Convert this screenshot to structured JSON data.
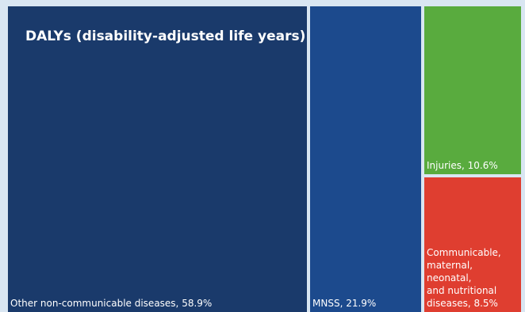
{
  "chart_data": {
    "type": "treemap",
    "title": "DALYs (disability-adjusted life years)",
    "unit": "%",
    "items": [
      {
        "name": "Other non-communicable diseases",
        "value": 58.9,
        "label": "Other non-communicable diseases, 58.9%",
        "color": "#1a3a6b"
      },
      {
        "name": "MNSS",
        "value": 21.9,
        "label": "MNSS, 21.9%",
        "color": "#1c4a8d"
      },
      {
        "name": "Injuries",
        "value": 10.6,
        "label": "Injuries, 10.6%",
        "color": "#59ab3e"
      },
      {
        "name": "Communicable, maternal, neonatal, and nutritional diseases",
        "value": 8.5,
        "label": "Communicable,\nmaternal, neonatal,\nand nutritional\ndiseases, 8.5%",
        "color": "#df3e30"
      }
    ]
  }
}
